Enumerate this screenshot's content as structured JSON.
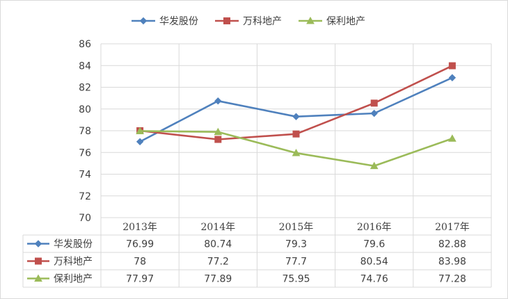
{
  "chart_data": {
    "type": "line",
    "title": "",
    "xlabel": "",
    "ylabel": "",
    "categories": [
      "2013年",
      "2014年",
      "2015年",
      "2016年",
      "2017年"
    ],
    "ylim": [
      70,
      86
    ],
    "yticks": [
      70,
      72,
      74,
      76,
      78,
      80,
      82,
      84,
      86
    ],
    "grid": true,
    "legend_position": "top",
    "data_table": true,
    "series": [
      {
        "name": "华发股份",
        "values": [
          76.99,
          80.74,
          79.3,
          79.6,
          82.88
        ],
        "labels": [
          "76.99",
          "80.74",
          "79.3",
          "79.6",
          "82.88"
        ],
        "color": "#4f81bd",
        "marker": "diamond"
      },
      {
        "name": "万科地产",
        "values": [
          78,
          77.2,
          77.7,
          80.54,
          83.98
        ],
        "labels": [
          "78",
          "77.2",
          "77.7",
          "80.54",
          "83.98"
        ],
        "color": "#c0504d",
        "marker": "square"
      },
      {
        "name": "保利地产",
        "values": [
          77.97,
          77.89,
          75.95,
          74.76,
          77.28
        ],
        "labels": [
          "77.97",
          "77.89",
          "75.95",
          "74.76",
          "77.28"
        ],
        "color": "#9bbb59",
        "marker": "triangle"
      }
    ]
  }
}
